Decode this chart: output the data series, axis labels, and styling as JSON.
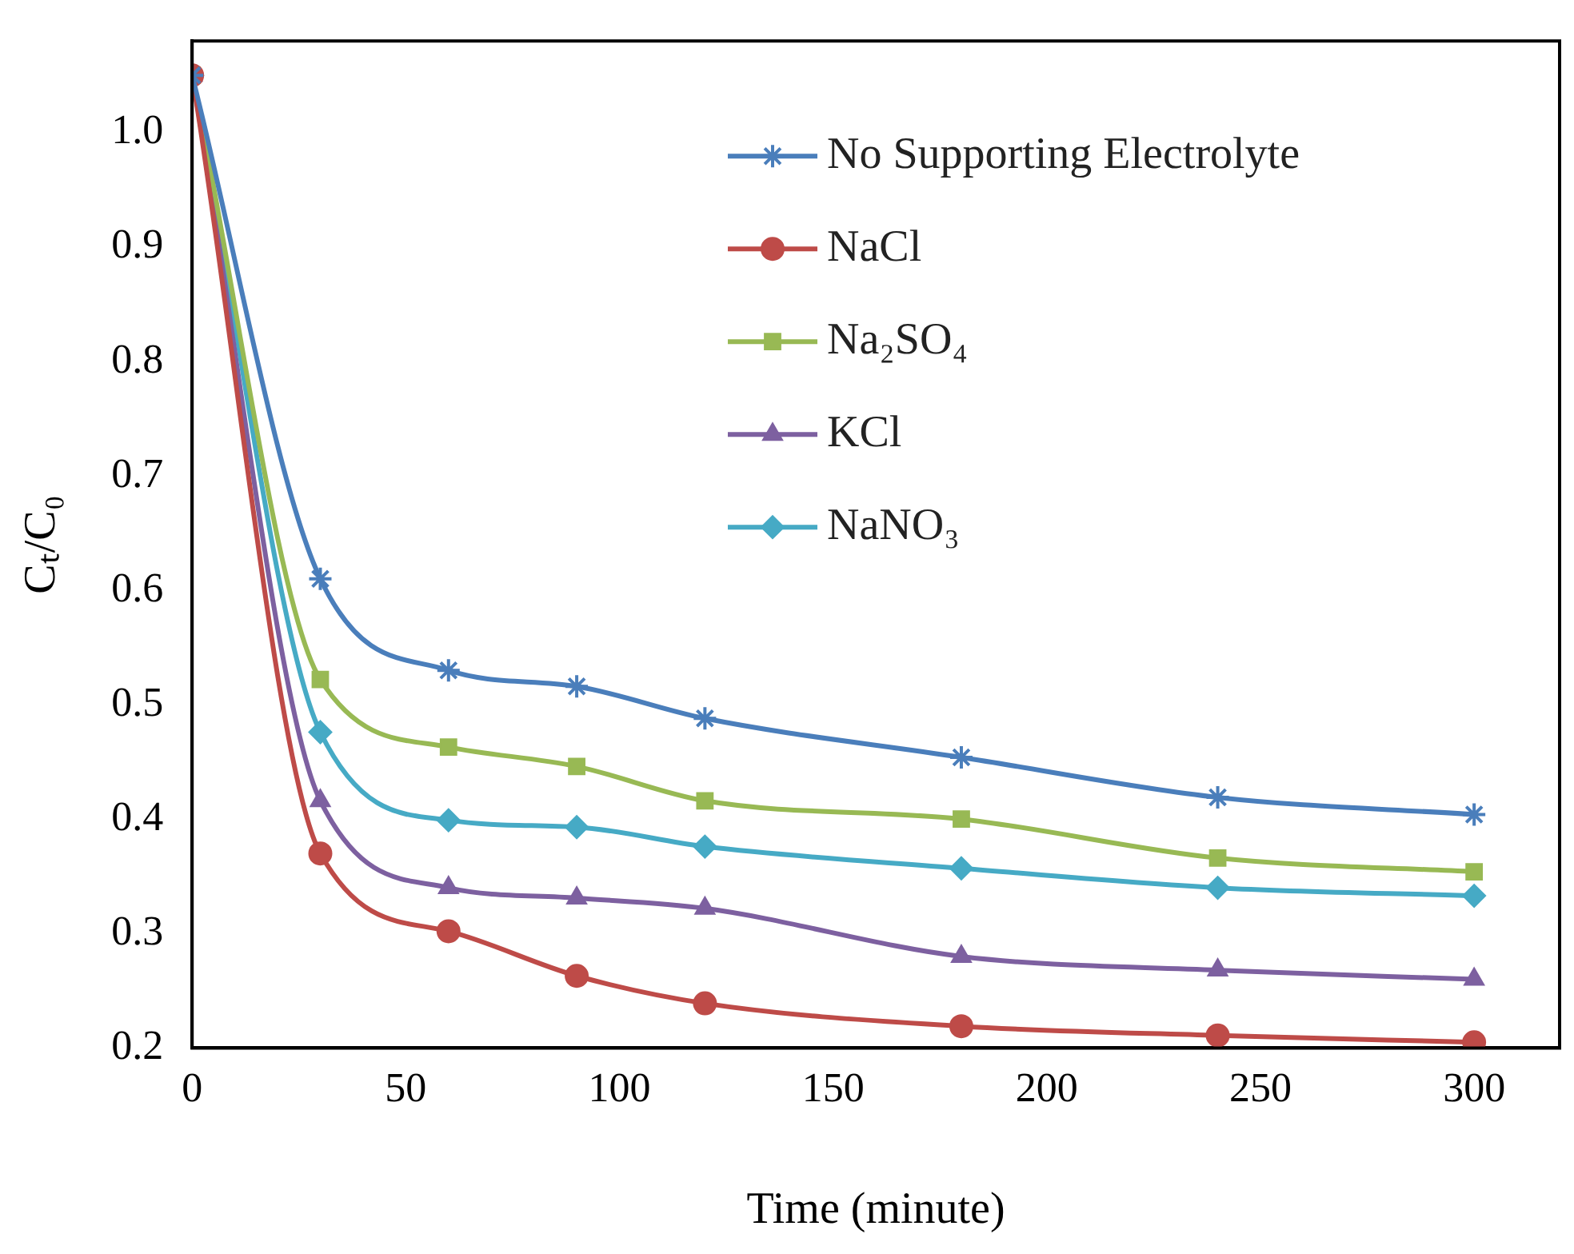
{
  "chart_data": {
    "type": "line",
    "xlabel": "Time (minute)",
    "ylabel": "Cₜ/C₀",
    "x": [
      0,
      30,
      60,
      90,
      120,
      180,
      240,
      300
    ],
    "series": [
      {
        "name": "No Supporting Electrolyte",
        "color": "#4a7ebb",
        "marker": "cross",
        "values": [
          1.05,
          0.61,
          0.53,
          0.516,
          0.488,
          0.454,
          0.419,
          0.404
        ]
      },
      {
        "name": "NaCl",
        "color": "#be4b48",
        "marker": "circle",
        "values": [
          1.05,
          0.37,
          0.302,
          0.263,
          0.239,
          0.219,
          0.211,
          0.205
        ]
      },
      {
        "name": "Na₂SO₄",
        "color": "#98b954",
        "marker": "square",
        "values": [
          1.05,
          0.522,
          0.463,
          0.446,
          0.416,
          0.4,
          0.366,
          0.354
        ]
      },
      {
        "name": "KCl",
        "color": "#7d60a0",
        "marker": "triangle",
        "values": [
          1.05,
          0.416,
          0.34,
          0.331,
          0.322,
          0.28,
          0.268,
          0.26
        ]
      },
      {
        "name": "NaNO₃",
        "color": "#46aac5",
        "marker": "diamond",
        "values": [
          1.05,
          0.476,
          0.399,
          0.393,
          0.376,
          0.357,
          0.34,
          0.333
        ]
      }
    ],
    "xlim": [
      0,
      320
    ],
    "xticks": [
      0,
      50,
      100,
      150,
      200,
      250,
      300
    ],
    "ylim": [
      0.2,
      1.08
    ],
    "yticks": [
      {
        "value": 0.2,
        "label": "0.2"
      },
      {
        "value": 0.3,
        "label": "0.3"
      },
      {
        "value": 0.4,
        "label": "0.4"
      },
      {
        "value": 0.5,
        "label": "0.5"
      },
      {
        "value": 0.6,
        "label": "0.6"
      },
      {
        "value": 0.7,
        "label": "0.7"
      },
      {
        "value": 0.8,
        "label": "0.8"
      },
      {
        "value": 0.9,
        "label": "0.9"
      },
      {
        "value": 1.0,
        "label": "1.0"
      }
    ],
    "grid": false,
    "legend": "top right"
  }
}
